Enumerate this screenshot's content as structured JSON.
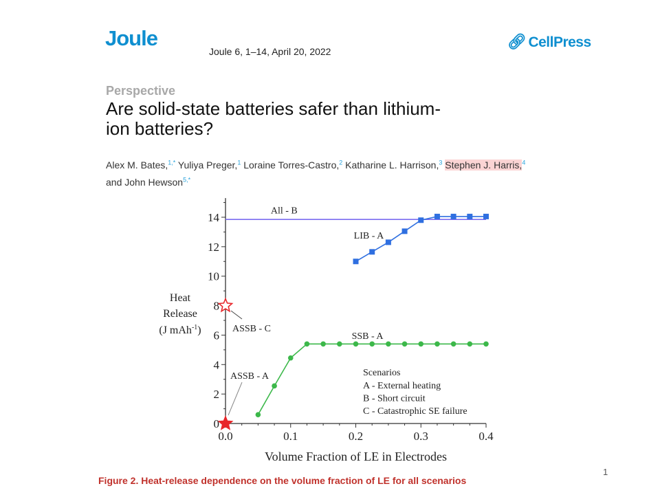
{
  "header": {
    "journal_logo": "Joule",
    "citation": "Joule 6, 1–14, April 20, 2022",
    "publisher": "CellPress",
    "publisher_icon": "cellpress-link-icon"
  },
  "article": {
    "type": "Perspective",
    "title": "Are solid-state batteries safer than lithium-ion batteries?",
    "authors": [
      {
        "name": "Alex M. Bates,",
        "sup": "1,*",
        "highlight": false
      },
      {
        "name": "Yuliya Preger,",
        "sup": "1",
        "highlight": false
      },
      {
        "name": "Loraine Torres-Castro,",
        "sup": "2",
        "highlight": false
      },
      {
        "name": "Katharine L. Harrison,",
        "sup": "3",
        "highlight": false
      },
      {
        "name": "Stephen J. Harris,",
        "sup": "4",
        "highlight": true
      },
      {
        "name": "and John Hewson",
        "sup": "5,*",
        "highlight": false
      }
    ]
  },
  "caption": "Figure 2.  Heat-release dependence on the volume fraction of LE for all scenarios",
  "page_number": "1",
  "colors": {
    "lib": "#2f6fe0",
    "all_b": "#7b6cf0",
    "ssb": "#3cb84a",
    "assb": "#e8262a",
    "brand": "#0f8fd0",
    "caption": "#c0312b"
  },
  "chart_data": {
    "type": "line",
    "xlabel": "Volume Fraction of LE in Electrodes",
    "ylabel": [
      "Heat",
      "Release",
      "(J mAh",
      "-1",
      ")"
    ],
    "xlim": [
      0,
      0.4
    ],
    "ylim": [
      0,
      15
    ],
    "xticks": [
      "0.0",
      "0.1",
      "0.2",
      "0.3",
      "0.4"
    ],
    "yticks": [
      "0",
      "2",
      "4",
      "6",
      "8",
      "10",
      "12",
      "14"
    ],
    "grid": false,
    "series": [
      {
        "name": "All - B",
        "marker": "none",
        "x": [
          0,
          0.4
        ],
        "y": [
          13.85,
          13.85
        ]
      },
      {
        "name": "LIB - A",
        "marker": "square",
        "x": [
          0.2,
          0.225,
          0.25,
          0.275,
          0.3,
          0.325,
          0.35,
          0.375,
          0.4
        ],
        "y": [
          11.0,
          11.65,
          12.3,
          13.05,
          13.8,
          14.05,
          14.05,
          14.05,
          14.05
        ]
      },
      {
        "name": "SSB - A",
        "marker": "circle",
        "x": [
          0.05,
          0.075,
          0.1,
          0.125,
          0.15,
          0.175,
          0.2,
          0.225,
          0.25,
          0.275,
          0.3,
          0.325,
          0.35,
          0.375,
          0.4
        ],
        "y": [
          0.6,
          2.55,
          4.45,
          5.4,
          5.4,
          5.4,
          5.4,
          5.4,
          5.4,
          5.4,
          5.4,
          5.4,
          5.4,
          5.4,
          5.4
        ]
      },
      {
        "name": "ASSB - C",
        "marker": "hollow-star",
        "x": [
          0
        ],
        "y": [
          8
        ]
      },
      {
        "name": "ASSB - A",
        "marker": "filled-star",
        "x": [
          0
        ],
        "y": [
          0
        ]
      }
    ],
    "legend": {
      "title": "Scenarios",
      "items": [
        "A - External heating",
        "B - Short circuit",
        "C - Catastrophic SE failure"
      ],
      "placement": "bottom-right"
    }
  }
}
